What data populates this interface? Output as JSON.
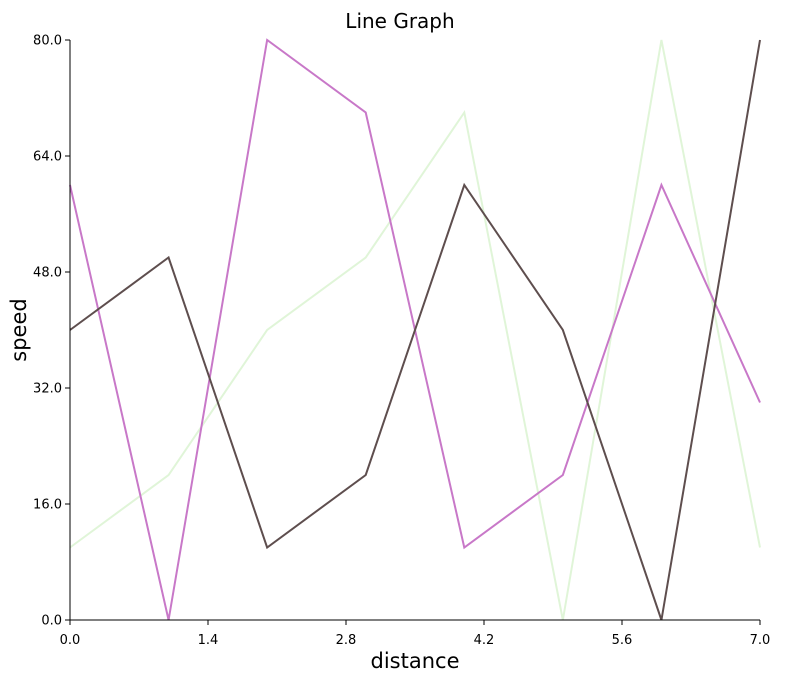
{
  "chart_data": {
    "type": "line",
    "title": "Line Graph",
    "xlabel": "distance",
    "ylabel": "speed",
    "xlim": [
      0,
      7
    ],
    "ylim": [
      0,
      80
    ],
    "x_ticks": [
      "0.0",
      "1.4",
      "2.8",
      "4.2",
      "5.6",
      "7.0"
    ],
    "y_ticks": [
      "0.0",
      "16.0",
      "32.0",
      "48.0",
      "64.0",
      "80.0"
    ],
    "grid": false,
    "x": [
      0,
      1,
      2,
      3,
      4,
      5,
      6,
      7
    ],
    "series": [
      {
        "color": "#e0f5d8",
        "values": [
          10,
          20,
          40,
          50,
          70,
          0,
          80,
          10
        ]
      },
      {
        "color": "#c878c8",
        "values": [
          60,
          0,
          80,
          70,
          10,
          20,
          60,
          30
        ]
      },
      {
        "color": "#5e4e4e",
        "values": [
          40,
          50,
          10,
          20,
          60,
          40,
          0,
          80
        ]
      }
    ]
  }
}
